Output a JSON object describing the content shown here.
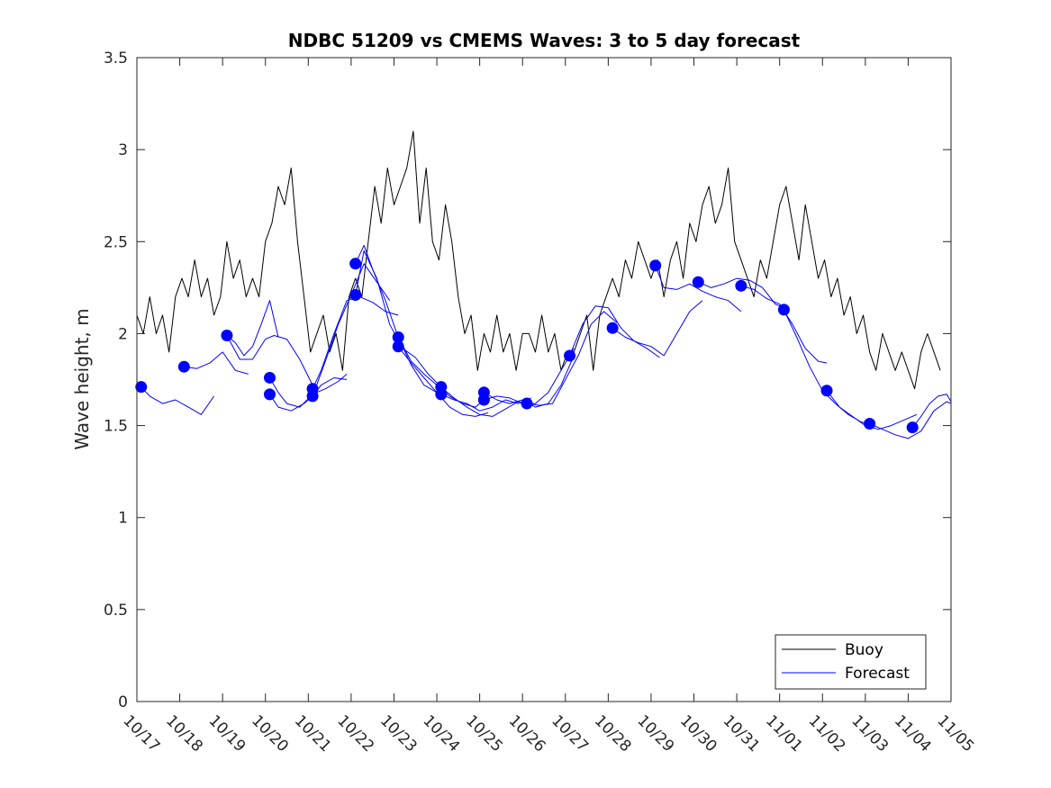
{
  "chart_data": {
    "type": "line",
    "title": "NDBC 51209 vs CMEMS Waves: 3 to 5 day forecast",
    "xlabel": "",
    "ylabel": "Wave height, m",
    "xlim": [
      0,
      19
    ],
    "ylim": [
      0,
      3.5
    ],
    "yticks": [
      0,
      0.5,
      1,
      1.5,
      2,
      2.5,
      3,
      3.5
    ],
    "ytick_labels": [
      "0",
      "0.5",
      "1",
      "1.5",
      "2",
      "2.5",
      "3",
      "3.5"
    ],
    "xticks": [
      0,
      1,
      2,
      3,
      4,
      5,
      6,
      7,
      8,
      9,
      10,
      11,
      12,
      13,
      14,
      15,
      16,
      17,
      18,
      19
    ],
    "xtick_labels": [
      "10/17",
      "10/18",
      "10/19",
      "10/20",
      "10/21",
      "10/22",
      "10/23",
      "10/24",
      "10/25",
      "10/26",
      "10/27",
      "10/28",
      "10/29",
      "10/30",
      "10/31",
      "11/01",
      "11/02",
      "11/03",
      "11/04",
      "11/05"
    ],
    "legend": {
      "position": "bottom-right",
      "entries": [
        "Buoy",
        "Forecast"
      ]
    },
    "colors": {
      "buoy": "#000000",
      "forecast": "#0000ff",
      "axes": "#262626"
    },
    "buoy": {
      "name": "Buoy",
      "x": [
        0.0,
        0.15,
        0.3,
        0.45,
        0.6,
        0.75,
        0.9,
        1.05,
        1.2,
        1.35,
        1.5,
        1.65,
        1.8,
        1.95,
        2.1,
        2.25,
        2.4,
        2.55,
        2.7,
        2.85,
        3.0,
        3.15,
        3.3,
        3.45,
        3.6,
        3.75,
        3.9,
        4.05,
        4.2,
        4.35,
        4.5,
        4.65,
        4.8,
        4.95,
        5.1,
        5.25,
        5.4,
        5.55,
        5.7,
        5.85,
        6.0,
        6.15,
        6.3,
        6.45,
        6.6,
        6.75,
        6.9,
        7.05,
        7.2,
        7.35,
        7.5,
        7.65,
        7.8,
        7.95,
        8.1,
        8.25,
        8.4,
        8.55,
        8.7,
        8.85,
        9.0,
        9.15,
        9.3,
        9.45,
        9.6,
        9.75,
        9.9,
        10.05,
        10.2,
        10.35,
        10.5,
        10.65,
        10.8,
        10.95,
        11.1,
        11.25,
        11.4,
        11.55,
        11.7,
        11.85,
        12.0,
        12.15,
        12.3,
        12.45,
        12.6,
        12.75,
        12.9,
        13.05,
        13.2,
        13.35,
        13.5,
        13.65,
        13.8,
        13.95,
        14.1,
        14.25,
        14.4,
        14.55,
        14.7,
        14.85,
        15.0,
        15.15,
        15.3,
        15.45,
        15.6,
        15.75,
        15.9,
        16.05,
        16.2,
        16.35,
        16.5,
        16.65,
        16.8,
        16.95,
        17.1,
        17.25,
        17.4,
        17.55,
        17.7,
        17.85,
        18.0,
        18.15,
        18.3,
        18.45
      ],
      "y": [
        2.1,
        2.0,
        2.2,
        2.0,
        2.1,
        1.9,
        2.2,
        2.3,
        2.2,
        2.4,
        2.2,
        2.3,
        2.1,
        2.2,
        2.5,
        2.3,
        2.4,
        2.2,
        2.3,
        2.2,
        2.5,
        2.6,
        2.8,
        2.7,
        2.9,
        2.5,
        2.2,
        1.9,
        2.0,
        2.1,
        1.9,
        2.0,
        1.8,
        2.2,
        2.3,
        2.2,
        2.5,
        2.8,
        2.6,
        2.9,
        2.7,
        2.8,
        2.9,
        3.1,
        2.6,
        2.9,
        2.5,
        2.4,
        2.7,
        2.5,
        2.2,
        2.0,
        2.1,
        1.8,
        2.0,
        1.9,
        2.1,
        1.9,
        2.0,
        1.8,
        2.0,
        2.0,
        1.9,
        2.1,
        1.9,
        2.0,
        1.8,
        1.9,
        1.9,
        2.0,
        2.1,
        1.8,
        2.1,
        2.2,
        2.3,
        2.2,
        2.4,
        2.3,
        2.5,
        2.4,
        2.3,
        2.4,
        2.2,
        2.4,
        2.5,
        2.3,
        2.6,
        2.5,
        2.7,
        2.8,
        2.6,
        2.7,
        2.9,
        2.5,
        2.4,
        2.3,
        2.2,
        2.4,
        2.3,
        2.5,
        2.7,
        2.8,
        2.6,
        2.4,
        2.7,
        2.5,
        2.3,
        2.4,
        2.2,
        2.3,
        2.1,
        2.2,
        2.0,
        2.1,
        1.9,
        1.8,
        2.0,
        1.9,
        1.8,
        1.9,
        1.8,
        1.7,
        1.9,
        2.0
      ]
    },
    "buoy_segments": [
      {
        "x": [
          18.45,
          18.6,
          18.75
        ],
        "y": [
          2.0,
          1.9,
          1.8
        ]
      }
    ],
    "forecast_series": [
      {
        "name": "Forecast",
        "x": [
          0.1,
          0.3,
          0.6,
          0.9,
          1.2,
          1.5,
          1.8
        ],
        "y": [
          1.71,
          1.66,
          1.62,
          1.64,
          1.6,
          1.56,
          1.66
        ]
      },
      {
        "name": "Forecast",
        "x": [
          1.1,
          1.4,
          1.7,
          2.0,
          2.3,
          2.6
        ],
        "y": [
          1.82,
          1.81,
          1.84,
          1.9,
          1.8,
          1.78
        ]
      },
      {
        "name": "Forecast",
        "x": [
          2.1,
          2.3,
          2.5,
          2.7,
          2.9,
          3.1,
          3.3
        ],
        "y": [
          1.99,
          1.95,
          1.88,
          1.93,
          2.05,
          2.18,
          1.98
        ]
      },
      {
        "name": "Forecast",
        "x": [
          2.1,
          2.4,
          2.7,
          3.0,
          3.2,
          3.5,
          3.8,
          4.1
        ],
        "y": [
          1.99,
          1.86,
          1.86,
          1.97,
          1.99,
          1.97,
          1.86,
          1.72
        ]
      },
      {
        "name": "Forecast",
        "x": [
          3.1,
          3.3,
          3.5,
          3.8,
          4.1,
          4.4,
          4.7,
          4.9
        ],
        "y": [
          1.76,
          1.68,
          1.62,
          1.6,
          1.67,
          1.7,
          1.74,
          1.78
        ]
      },
      {
        "name": "Forecast",
        "x": [
          3.1,
          3.3,
          3.6,
          3.9,
          4.1,
          4.3,
          4.6,
          4.9
        ],
        "y": [
          1.67,
          1.6,
          1.58,
          1.62,
          1.66,
          1.72,
          1.76,
          1.75
        ]
      },
      {
        "name": "Forecast",
        "x": [
          4.1,
          4.3,
          4.6,
          4.9,
          5.2,
          5.5,
          5.8,
          6.1
        ],
        "y": [
          1.7,
          1.8,
          2.0,
          2.18,
          2.2,
          2.17,
          2.12,
          2.1
        ]
      },
      {
        "name": "Forecast",
        "x": [
          4.1,
          4.4,
          4.7,
          5.0,
          5.3,
          5.6,
          5.9
        ],
        "y": [
          1.66,
          1.85,
          2.05,
          2.21,
          2.38,
          2.28,
          2.18
        ]
      },
      {
        "name": "Forecast",
        "x": [
          5.1,
          5.3,
          5.5,
          5.8,
          6.1,
          6.4,
          6.7,
          7.0
        ],
        "y": [
          2.38,
          2.48,
          2.35,
          2.18,
          1.98,
          1.83,
          1.72,
          1.68
        ]
      },
      {
        "name": "Forecast",
        "x": [
          5.1,
          5.3,
          5.6,
          5.9,
          6.2,
          6.5,
          6.8,
          7.1
        ],
        "y": [
          2.21,
          2.45,
          2.3,
          2.05,
          1.92,
          1.87,
          1.78,
          1.71
        ]
      },
      {
        "name": "Forecast",
        "x": [
          6.1,
          6.4,
          6.7,
          7.0,
          7.3,
          7.6,
          7.9,
          8.1
        ],
        "y": [
          1.98,
          1.85,
          1.78,
          1.72,
          1.66,
          1.62,
          1.6,
          1.64
        ]
      },
      {
        "name": "Forecast",
        "x": [
          6.1,
          6.4,
          6.7,
          7.0,
          7.3,
          7.6,
          7.9,
          8.2
        ],
        "y": [
          1.93,
          1.84,
          1.76,
          1.68,
          1.6,
          1.56,
          1.55,
          1.57
        ]
      },
      {
        "name": "Forecast",
        "x": [
          7.1,
          7.4,
          7.7,
          8.0,
          8.3,
          8.6,
          8.9,
          9.1
        ],
        "y": [
          1.71,
          1.65,
          1.6,
          1.56,
          1.55,
          1.59,
          1.63,
          1.62
        ]
      },
      {
        "name": "Forecast",
        "x": [
          7.1,
          7.4,
          7.7,
          8.0,
          8.3,
          8.6,
          8.9,
          9.2
        ],
        "y": [
          1.67,
          1.64,
          1.62,
          1.58,
          1.6,
          1.64,
          1.62,
          1.65
        ]
      },
      {
        "name": "Forecast",
        "x": [
          8.1,
          8.4,
          8.7,
          9.0,
          9.3,
          9.6,
          9.9,
          10.2
        ],
        "y": [
          1.68,
          1.64,
          1.62,
          1.64,
          1.6,
          1.62,
          1.72,
          1.88
        ]
      },
      {
        "name": "Forecast",
        "x": [
          8.1,
          8.4,
          8.7,
          9.0,
          9.3,
          9.6,
          9.9,
          10.2
        ],
        "y": [
          1.64,
          1.66,
          1.65,
          1.62,
          1.62,
          1.68,
          1.8,
          1.92
        ]
      },
      {
        "name": "Forecast",
        "x": [
          9.1,
          9.4,
          9.7,
          10.0,
          10.3,
          10.6,
          10.9,
          11.2
        ],
        "y": [
          1.62,
          1.61,
          1.62,
          1.75,
          1.88,
          2.05,
          2.12,
          2.06
        ]
      },
      {
        "name": "Forecast",
        "x": [
          10.1,
          10.4,
          10.7,
          11.0,
          11.3,
          11.6,
          11.9,
          12.2
        ],
        "y": [
          1.88,
          2.05,
          2.15,
          2.14,
          2.03,
          1.96,
          1.92,
          1.87
        ]
      },
      {
        "name": "Forecast",
        "x": [
          11.1,
          11.4,
          11.7,
          12.0,
          12.3,
          12.6,
          12.9,
          13.2
        ],
        "y": [
          2.03,
          1.98,
          1.95,
          1.93,
          1.88,
          2.0,
          2.12,
          2.18
        ]
      },
      {
        "name": "Forecast",
        "x": [
          12.1,
          12.3,
          12.6,
          12.9,
          13.2,
          13.5,
          13.8,
          14.1
        ],
        "y": [
          2.37,
          2.25,
          2.24,
          2.27,
          2.23,
          2.2,
          2.18,
          2.12
        ]
      },
      {
        "name": "Forecast",
        "x": [
          13.1,
          13.4,
          13.7,
          14.0,
          14.3,
          14.6,
          14.9,
          15.2
        ],
        "y": [
          2.28,
          2.25,
          2.27,
          2.3,
          2.29,
          2.25,
          2.16,
          2.13
        ]
      },
      {
        "name": "Forecast",
        "x": [
          14.1,
          14.4,
          14.7,
          15.0,
          15.3,
          15.6,
          15.9,
          16.1
        ],
        "y": [
          2.26,
          2.24,
          2.19,
          2.16,
          2.05,
          1.92,
          1.85,
          1.84
        ]
      },
      {
        "name": "Forecast",
        "x": [
          15.1,
          15.4,
          15.7,
          16.0,
          16.3,
          16.6,
          16.9,
          17.2
        ],
        "y": [
          2.13,
          1.98,
          1.82,
          1.69,
          1.62,
          1.56,
          1.52,
          1.5
        ]
      },
      {
        "name": "Forecast",
        "x": [
          16.1,
          16.4,
          16.7,
          17.0,
          17.3,
          17.6,
          17.9,
          18.2
        ],
        "y": [
          1.69,
          1.6,
          1.55,
          1.5,
          1.48,
          1.5,
          1.53,
          1.56
        ]
      },
      {
        "name": "Forecast",
        "x": [
          17.1,
          17.4,
          17.7,
          18.0,
          18.3,
          18.6,
          18.9,
          19.0
        ],
        "y": [
          1.51,
          1.48,
          1.45,
          1.43,
          1.47,
          1.58,
          1.63,
          1.62
        ]
      },
      {
        "name": "Forecast",
        "x": [
          18.1,
          18.3,
          18.5,
          18.7,
          18.9,
          19.0
        ],
        "y": [
          1.49,
          1.55,
          1.62,
          1.66,
          1.67,
          1.63
        ]
      }
    ],
    "forecast_markers": {
      "x": [
        0.1,
        1.1,
        2.1,
        3.1,
        3.1,
        4.1,
        4.1,
        5.1,
        5.1,
        6.1,
        6.1,
        7.1,
        7.1,
        8.1,
        8.1,
        9.1,
        10.1,
        11.1,
        12.1,
        13.1,
        14.1,
        15.1,
        16.1,
        17.1,
        18.1
      ],
      "y": [
        1.71,
        1.82,
        1.99,
        1.76,
        1.67,
        1.7,
        1.66,
        2.38,
        2.21,
        1.98,
        1.93,
        1.71,
        1.67,
        1.68,
        1.64,
        1.62,
        1.88,
        2.03,
        2.37,
        2.28,
        2.26,
        2.13,
        1.69,
        1.51,
        1.49
      ]
    }
  }
}
